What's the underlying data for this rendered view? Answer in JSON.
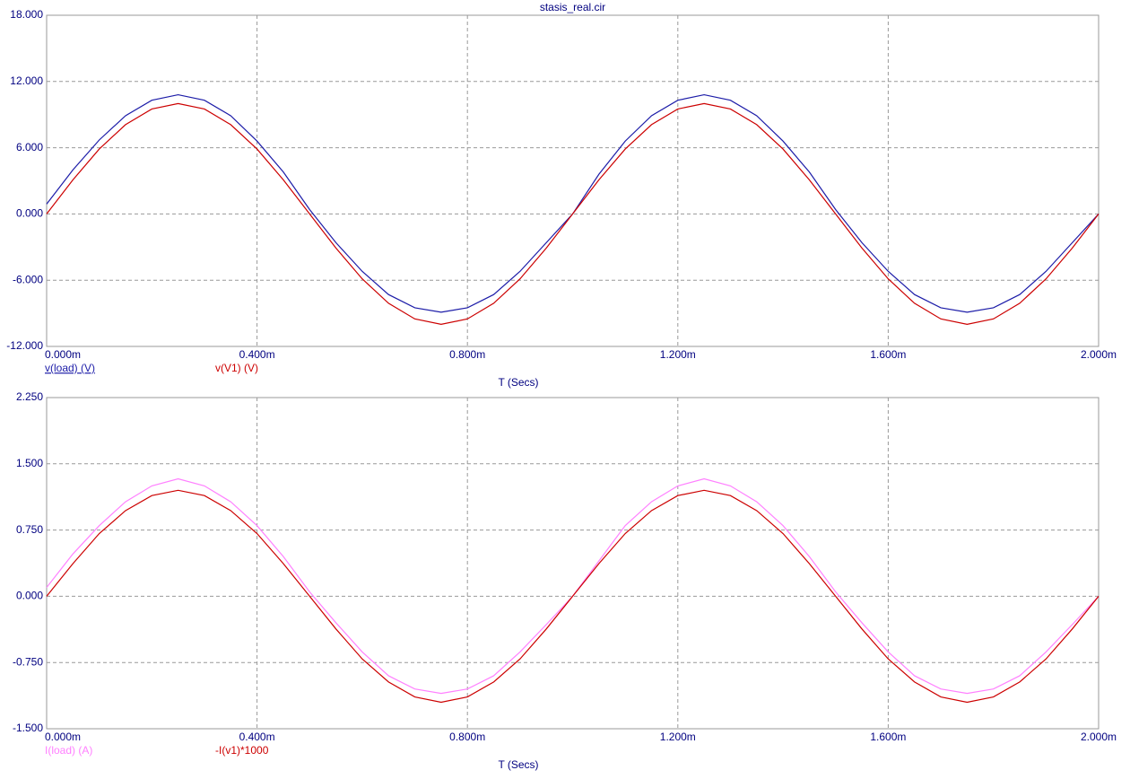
{
  "chart_data": [
    {
      "type": "line",
      "title": "stasis_real.cir",
      "xlabel": "T (Secs)",
      "x": [
        0,
        5e-05,
        0.0001,
        0.00015,
        0.0002,
        0.00025,
        0.0003,
        0.00035,
        0.0004,
        0.00045,
        0.0005,
        0.00055,
        0.0006,
        0.00065,
        0.0007,
        0.00075,
        0.0008,
        0.00085,
        0.0009,
        0.00095,
        0.001,
        0.00105,
        0.0011,
        0.00115,
        0.0012,
        0.00125,
        0.0013,
        0.00135,
        0.0014,
        0.00145,
        0.0015,
        0.00155,
        0.0016,
        0.00165,
        0.0017,
        0.00175,
        0.0018,
        0.00185,
        0.0019,
        0.00195,
        0.002
      ],
      "series": [
        {
          "name": "v(load) (V)",
          "color": "#1c1ca8",
          "values": [
            0.9,
            4.0,
            6.7,
            8.9,
            10.3,
            10.8,
            10.3,
            8.9,
            6.6,
            3.8,
            0.4,
            -2.6,
            -5.2,
            -7.3,
            -8.5,
            -8.9,
            -8.5,
            -7.3,
            -5.2,
            -2.6,
            0,
            3.6,
            6.6,
            8.9,
            10.3,
            10.8,
            10.3,
            8.9,
            6.6,
            3.8,
            0.4,
            -2.6,
            -5.2,
            -7.3,
            -8.5,
            -8.9,
            -8.5,
            -7.3,
            -5.2,
            -2.6,
            0
          ]
        },
        {
          "name": "v(V1) (V)",
          "color": "#cc0000",
          "values": [
            0,
            3.09,
            5.88,
            8.09,
            9.51,
            10,
            9.51,
            8.09,
            5.88,
            3.09,
            0,
            -3.09,
            -5.88,
            -8.09,
            -9.51,
            -10,
            -9.51,
            -8.09,
            -5.88,
            -3.09,
            0,
            3.09,
            5.88,
            8.09,
            9.51,
            10,
            9.51,
            8.09,
            5.88,
            3.09,
            0,
            -3.09,
            -5.88,
            -8.09,
            -9.51,
            -10,
            -9.51,
            -8.09,
            -5.88,
            -3.09,
            0
          ]
        }
      ],
      "xlim": [
        0,
        0.002
      ],
      "xticks": [
        {
          "value": 0,
          "label": "0.000m"
        },
        {
          "value": 0.0004,
          "label": "0.400m"
        },
        {
          "value": 0.0008,
          "label": "0.800m"
        },
        {
          "value": 0.0012,
          "label": "1.200m"
        },
        {
          "value": 0.0016,
          "label": "1.600m"
        },
        {
          "value": 0.002,
          "label": "2.000m"
        }
      ],
      "ylim": [
        -12,
        18
      ],
      "yticks": [
        {
          "value": -12,
          "label": "-12.000"
        },
        {
          "value": -6,
          "label": "-6.000"
        },
        {
          "value": 0,
          "label": "0.000"
        },
        {
          "value": 6,
          "label": "6.000"
        },
        {
          "value": 12,
          "label": "12.000"
        },
        {
          "value": 18,
          "label": "18.000"
        }
      ],
      "grid": true
    },
    {
      "type": "line",
      "xlabel": "T (Secs)",
      "x": [
        0,
        5e-05,
        0.0001,
        0.00015,
        0.0002,
        0.00025,
        0.0003,
        0.00035,
        0.0004,
        0.00045,
        0.0005,
        0.00055,
        0.0006,
        0.00065,
        0.0007,
        0.00075,
        0.0008,
        0.00085,
        0.0009,
        0.00095,
        0.001,
        0.00105,
        0.0011,
        0.00115,
        0.0012,
        0.00125,
        0.0013,
        0.00135,
        0.0014,
        0.00145,
        0.0015,
        0.00155,
        0.0016,
        0.00165,
        0.0017,
        0.00175,
        0.0018,
        0.00185,
        0.0019,
        0.00195,
        0.002
      ],
      "series": [
        {
          "name": "I(load) (A)",
          "color": "#ff80ff",
          "values": [
            0.1,
            0.48,
            0.8,
            1.07,
            1.25,
            1.33,
            1.25,
            1.07,
            0.8,
            0.45,
            0.05,
            -0.3,
            -0.63,
            -0.9,
            -1.05,
            -1.1,
            -1.05,
            -0.9,
            -0.63,
            -0.32,
            0,
            0.4,
            0.8,
            1.07,
            1.25,
            1.33,
            1.25,
            1.07,
            0.8,
            0.45,
            0.05,
            -0.3,
            -0.63,
            -0.9,
            -1.05,
            -1.1,
            -1.05,
            -0.9,
            -0.63,
            -0.32,
            0
          ]
        },
        {
          "name": "-I(v1)*1000",
          "color": "#cc0000",
          "values": [
            0,
            0.37,
            0.71,
            0.97,
            1.14,
            1.2,
            1.14,
            0.97,
            0.71,
            0.37,
            0,
            -0.37,
            -0.71,
            -0.97,
            -1.14,
            -1.2,
            -1.14,
            -0.97,
            -0.71,
            -0.37,
            0,
            0.37,
            0.71,
            0.97,
            1.14,
            1.2,
            1.14,
            0.97,
            0.71,
            0.37,
            0,
            -0.37,
            -0.71,
            -0.97,
            -1.14,
            -1.2,
            -1.14,
            -0.97,
            -0.71,
            -0.37,
            0
          ]
        }
      ],
      "xlim": [
        0,
        0.002
      ],
      "xticks": [
        {
          "value": 0,
          "label": "0.000m"
        },
        {
          "value": 0.0004,
          "label": "0.400m"
        },
        {
          "value": 0.0008,
          "label": "0.800m"
        },
        {
          "value": 0.0012,
          "label": "1.200m"
        },
        {
          "value": 0.0016,
          "label": "1.600m"
        },
        {
          "value": 0.002,
          "label": "2.000m"
        }
      ],
      "ylim": [
        -1.5,
        2.25
      ],
      "yticks": [
        {
          "value": -1.5,
          "label": "-1.500"
        },
        {
          "value": -0.75,
          "label": "-0.750"
        },
        {
          "value": 0,
          "label": "0.000"
        },
        {
          "value": 0.75,
          "label": "0.750"
        },
        {
          "value": 1.5,
          "label": "1.500"
        },
        {
          "value": 2.25,
          "label": "2.250"
        }
      ],
      "grid": true
    }
  ]
}
